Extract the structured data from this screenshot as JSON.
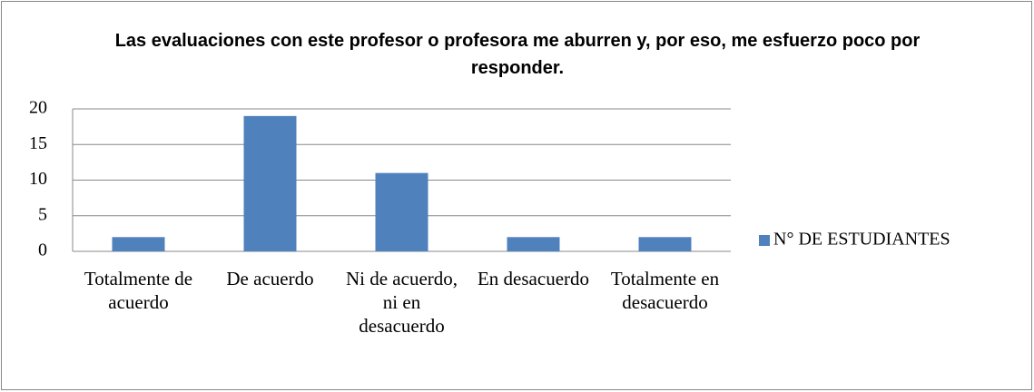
{
  "chart_data": {
    "type": "bar",
    "title": "Las evaluaciones con este profesor o profesora me aburren y, por eso, me esfuerzo poco por responder.",
    "categories": [
      "Totalmente de acuerdo",
      "De acuerdo",
      "Ni de acuerdo, ni en desacuerdo",
      "En desacuerdo",
      "Totalmente en desacuerdo"
    ],
    "series": [
      {
        "name": "N° DE ESTUDIANTES",
        "color": "#4f81bd",
        "values": [
          2,
          19,
          11,
          2,
          2
        ]
      }
    ],
    "ylim": [
      0,
      20
    ],
    "yticks": [
      0,
      5,
      10,
      15,
      20
    ],
    "grid": true,
    "legend": "right"
  }
}
